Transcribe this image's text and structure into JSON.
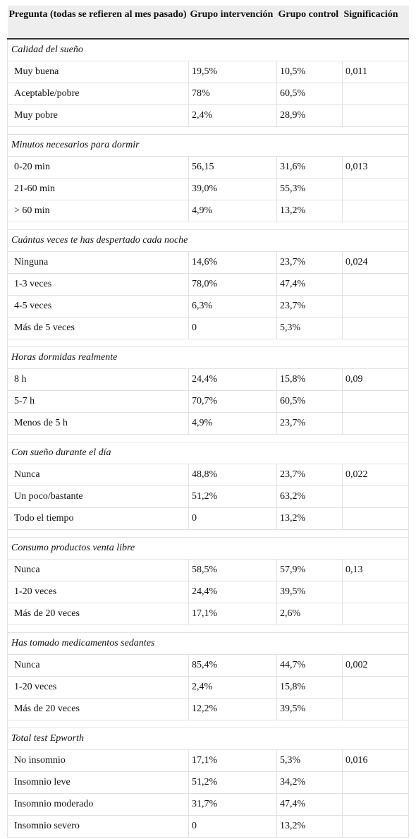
{
  "table": {
    "header": [
      "Pregunta (todas se refieren al mes pasado)",
      "Grupo intervención",
      "Grupo control",
      "Significación"
    ],
    "sections": [
      {
        "title": "Calidad del sueño",
        "rows": [
          [
            "Muy buena",
            "19,5%",
            "10,5%",
            "0,011"
          ],
          [
            "Aceptable/pobre",
            "78%",
            "60,5%"
          ],
          [
            "Muy pobre",
            "2,4%",
            "28,9%"
          ]
        ]
      },
      {
        "title": "Minutos necesarios para dormir",
        "rows": [
          [
            "0-20 min",
            "56,15",
            "31,6%",
            "0,013"
          ],
          [
            "21-60 min",
            "39,0%",
            "55,3%"
          ],
          [
            "> 60 min",
            "4,9%",
            "13,2%"
          ]
        ]
      },
      {
        "title": "Cuántas veces te has despertado cada noche",
        "rows": [
          [
            "Ninguna",
            "14,6%",
            "23,7%",
            "0,024"
          ],
          [
            "1-3 veces",
            "78,0%",
            "47,4%"
          ],
          [
            "4-5 veces",
            "6,3%",
            "23,7%"
          ],
          [
            "Más de 5 veces",
            "0",
            "5,3%"
          ]
        ]
      },
      {
        "title": "Horas dormidas realmente",
        "rows": [
          [
            "8 h",
            "24,4%",
            "15,8%",
            "0,09"
          ],
          [
            "5-7 h",
            "70,7%",
            "60,5%"
          ],
          [
            "Menos de 5 h",
            "4,9%",
            "23,7%"
          ]
        ]
      },
      {
        "title": "Con sueño durante el día",
        "rows": [
          [
            "Nunca",
            "48,8%",
            "23,7%",
            "0,022"
          ],
          [
            "Un poco/bastante",
            "51,2%",
            "63,2%"
          ],
          [
            "Todo el tiempo",
            "0",
            "13,2%"
          ]
        ]
      },
      {
        "title": "Consumo productos venta libre",
        "rows": [
          [
            "Nunca",
            "58,5%",
            "57,9%",
            "0,13"
          ],
          [
            "1-20 veces",
            "24,4%",
            "39,5%"
          ],
          [
            "Más de 20 veces",
            "17,1%",
            "2,6%"
          ]
        ]
      },
      {
        "title": "Has tomado medicamentos sedantes",
        "rows": [
          [
            "Nunca",
            "85,4%",
            "44,7%",
            "0,002"
          ],
          [
            "1-20 veces",
            "2,4%",
            "15,8%"
          ],
          [
            "Más de 20 veces",
            "12,2%",
            "39,5%"
          ]
        ]
      },
      {
        "title": "Total test Epworth",
        "rows": [
          [
            "No insomnio",
            "17,1%",
            "5,3%",
            "0,016"
          ],
          [
            "Insomnio leve",
            "51,2%",
            "34,2%"
          ],
          [
            "Insomnio moderado",
            "31,7%",
            "47,4%"
          ],
          [
            "Insomnio severo",
            "0",
            "13,2%"
          ]
        ]
      }
    ]
  }
}
